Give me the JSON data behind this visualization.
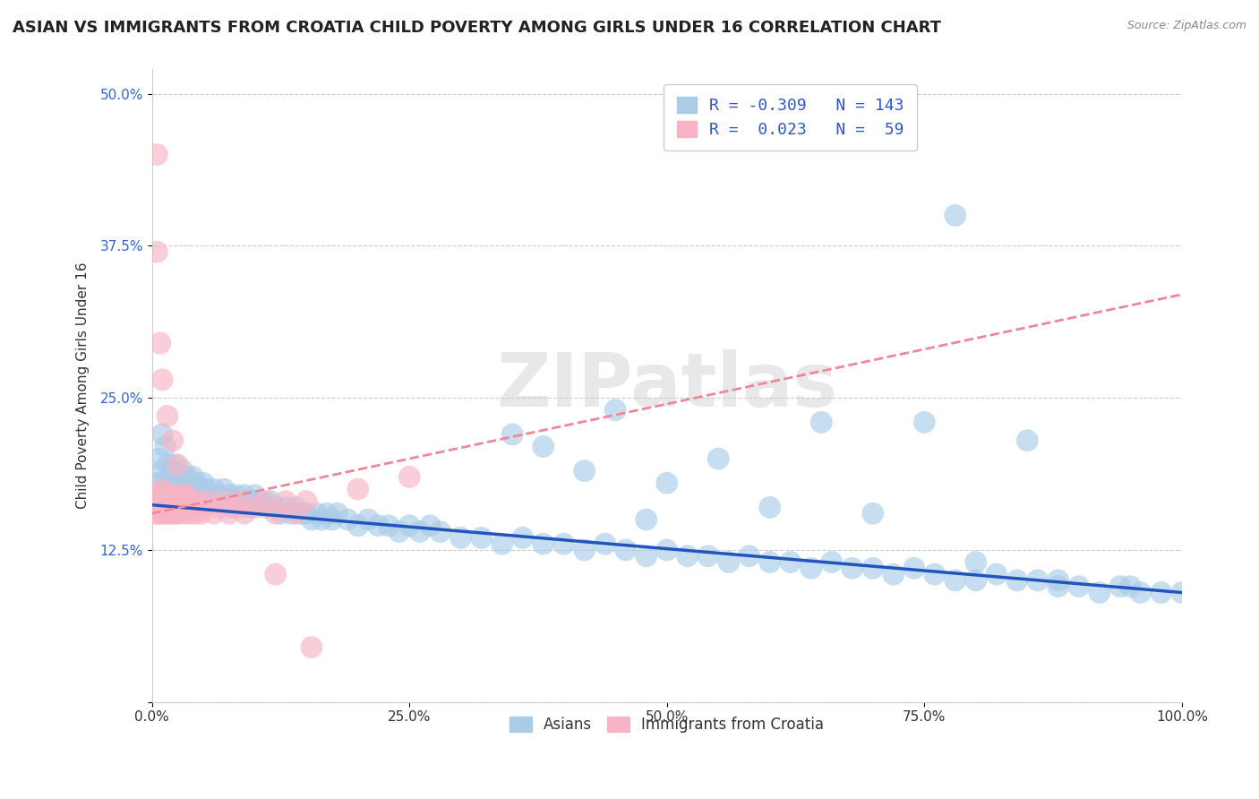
{
  "title": "ASIAN VS IMMIGRANTS FROM CROATIA CHILD POVERTY AMONG GIRLS UNDER 16 CORRELATION CHART",
  "source": "Source: ZipAtlas.com",
  "ylabel": "Child Poverty Among Girls Under 16",
  "xlim": [
    0.0,
    1.0
  ],
  "ylim": [
    0.0,
    0.52
  ],
  "xticks": [
    0.0,
    0.25,
    0.5,
    0.75,
    1.0
  ],
  "xticklabels": [
    "0.0%",
    "25.0%",
    "50.0%",
    "75.0%",
    "100.0%"
  ],
  "yticks": [
    0.0,
    0.125,
    0.25,
    0.375,
    0.5
  ],
  "yticklabels": [
    "",
    "12.5%",
    "25.0%",
    "37.5%",
    "50.0%"
  ],
  "background_color": "#ffffff",
  "grid_color": "#cccccc",
  "watermark": "ZIPatlas",
  "legend_asian_R": "-0.309",
  "legend_asian_N": "143",
  "legend_croatia_R": "0.023",
  "legend_croatia_N": "59",
  "legend_labels": [
    "Asians",
    "Immigrants from Croatia"
  ],
  "asian_scatter_color": "#aacce8",
  "croatia_scatter_color": "#f8b4c4",
  "asian_line_color": "#2255bb",
  "croatia_line_color": "#ee8899",
  "title_fontsize": 13,
  "axis_fontsize": 11,
  "tick_fontsize": 11,
  "asian_line_intercept": 0.162,
  "asian_line_slope": -0.072,
  "croatia_line_intercept": 0.155,
  "croatia_line_slope": 0.18,
  "asian_points_x": [
    0.005,
    0.007,
    0.008,
    0.01,
    0.01,
    0.01,
    0.012,
    0.013,
    0.015,
    0.015,
    0.018,
    0.018,
    0.019,
    0.02,
    0.02,
    0.021,
    0.022,
    0.023,
    0.025,
    0.025,
    0.027,
    0.028,
    0.03,
    0.03,
    0.031,
    0.032,
    0.033,
    0.034,
    0.035,
    0.036,
    0.038,
    0.04,
    0.04,
    0.042,
    0.043,
    0.045,
    0.047,
    0.05,
    0.05,
    0.052,
    0.055,
    0.057,
    0.06,
    0.062,
    0.065,
    0.068,
    0.07,
    0.072,
    0.075,
    0.078,
    0.08,
    0.082,
    0.085,
    0.088,
    0.09,
    0.092,
    0.095,
    0.098,
    0.1,
    0.105,
    0.11,
    0.115,
    0.12,
    0.125,
    0.13,
    0.135,
    0.14,
    0.145,
    0.15,
    0.155,
    0.16,
    0.165,
    0.17,
    0.175,
    0.18,
    0.19,
    0.2,
    0.21,
    0.22,
    0.23,
    0.24,
    0.25,
    0.26,
    0.27,
    0.28,
    0.3,
    0.32,
    0.34,
    0.36,
    0.38,
    0.4,
    0.42,
    0.44,
    0.46,
    0.48,
    0.5,
    0.52,
    0.54,
    0.56,
    0.58,
    0.6,
    0.62,
    0.64,
    0.66,
    0.68,
    0.7,
    0.72,
    0.74,
    0.76,
    0.78,
    0.8,
    0.82,
    0.84,
    0.86,
    0.88,
    0.9,
    0.92,
    0.94,
    0.96,
    0.98,
    1.0,
    0.55,
    0.45,
    0.35,
    0.78,
    0.88,
    0.65,
    0.75,
    0.85,
    0.95,
    0.5,
    0.6,
    0.7,
    0.8,
    0.48,
    0.42,
    0.38
  ],
  "asian_points_y": [
    0.18,
    0.2,
    0.165,
    0.22,
    0.17,
    0.19,
    0.18,
    0.21,
    0.175,
    0.195,
    0.185,
    0.16,
    0.175,
    0.19,
    0.165,
    0.18,
    0.195,
    0.17,
    0.185,
    0.175,
    0.165,
    0.18,
    0.175,
    0.19,
    0.165,
    0.18,
    0.17,
    0.185,
    0.175,
    0.16,
    0.175,
    0.185,
    0.165,
    0.175,
    0.18,
    0.165,
    0.175,
    0.18,
    0.165,
    0.175,
    0.17,
    0.165,
    0.175,
    0.165,
    0.17,
    0.165,
    0.175,
    0.165,
    0.17,
    0.16,
    0.165,
    0.17,
    0.16,
    0.165,
    0.17,
    0.165,
    0.16,
    0.165,
    0.17,
    0.165,
    0.16,
    0.165,
    0.16,
    0.155,
    0.16,
    0.155,
    0.16,
    0.155,
    0.155,
    0.15,
    0.155,
    0.15,
    0.155,
    0.15,
    0.155,
    0.15,
    0.145,
    0.15,
    0.145,
    0.145,
    0.14,
    0.145,
    0.14,
    0.145,
    0.14,
    0.135,
    0.135,
    0.13,
    0.135,
    0.13,
    0.13,
    0.125,
    0.13,
    0.125,
    0.12,
    0.125,
    0.12,
    0.12,
    0.115,
    0.12,
    0.115,
    0.115,
    0.11,
    0.115,
    0.11,
    0.11,
    0.105,
    0.11,
    0.105,
    0.1,
    0.1,
    0.105,
    0.1,
    0.1,
    0.095,
    0.095,
    0.09,
    0.095,
    0.09,
    0.09,
    0.09,
    0.2,
    0.24,
    0.22,
    0.4,
    0.1,
    0.23,
    0.23,
    0.215,
    0.095,
    0.18,
    0.16,
    0.155,
    0.115,
    0.15,
    0.19,
    0.21
  ],
  "croatia_points_x": [
    0.003,
    0.004,
    0.005,
    0.005,
    0.006,
    0.007,
    0.008,
    0.009,
    0.009,
    0.01,
    0.01,
    0.011,
    0.012,
    0.013,
    0.014,
    0.015,
    0.015,
    0.016,
    0.017,
    0.018,
    0.019,
    0.02,
    0.021,
    0.022,
    0.023,
    0.024,
    0.025,
    0.026,
    0.027,
    0.028,
    0.03,
    0.031,
    0.032,
    0.033,
    0.034,
    0.035,
    0.036,
    0.038,
    0.04,
    0.042,
    0.045,
    0.048,
    0.05,
    0.055,
    0.06,
    0.065,
    0.07,
    0.075,
    0.08,
    0.085,
    0.09,
    0.1,
    0.11,
    0.12,
    0.13,
    0.14,
    0.15,
    0.2,
    0.25
  ],
  "croatia_points_y": [
    0.16,
    0.155,
    0.165,
    0.17,
    0.155,
    0.16,
    0.165,
    0.155,
    0.17,
    0.16,
    0.175,
    0.165,
    0.155,
    0.165,
    0.17,
    0.16,
    0.155,
    0.165,
    0.16,
    0.155,
    0.17,
    0.165,
    0.155,
    0.16,
    0.17,
    0.155,
    0.165,
    0.16,
    0.155,
    0.165,
    0.17,
    0.16,
    0.155,
    0.165,
    0.17,
    0.16,
    0.155,
    0.165,
    0.16,
    0.155,
    0.165,
    0.155,
    0.16,
    0.165,
    0.155,
    0.16,
    0.165,
    0.155,
    0.16,
    0.165,
    0.155,
    0.16,
    0.165,
    0.155,
    0.165,
    0.155,
    0.165,
    0.175,
    0.185
  ],
  "croatia_extra_x": [
    0.005,
    0.005,
    0.008,
    0.01,
    0.015,
    0.02,
    0.025,
    0.12,
    0.155
  ],
  "croatia_extra_y": [
    0.45,
    0.37,
    0.295,
    0.265,
    0.235,
    0.215,
    0.195,
    0.105,
    0.045
  ]
}
